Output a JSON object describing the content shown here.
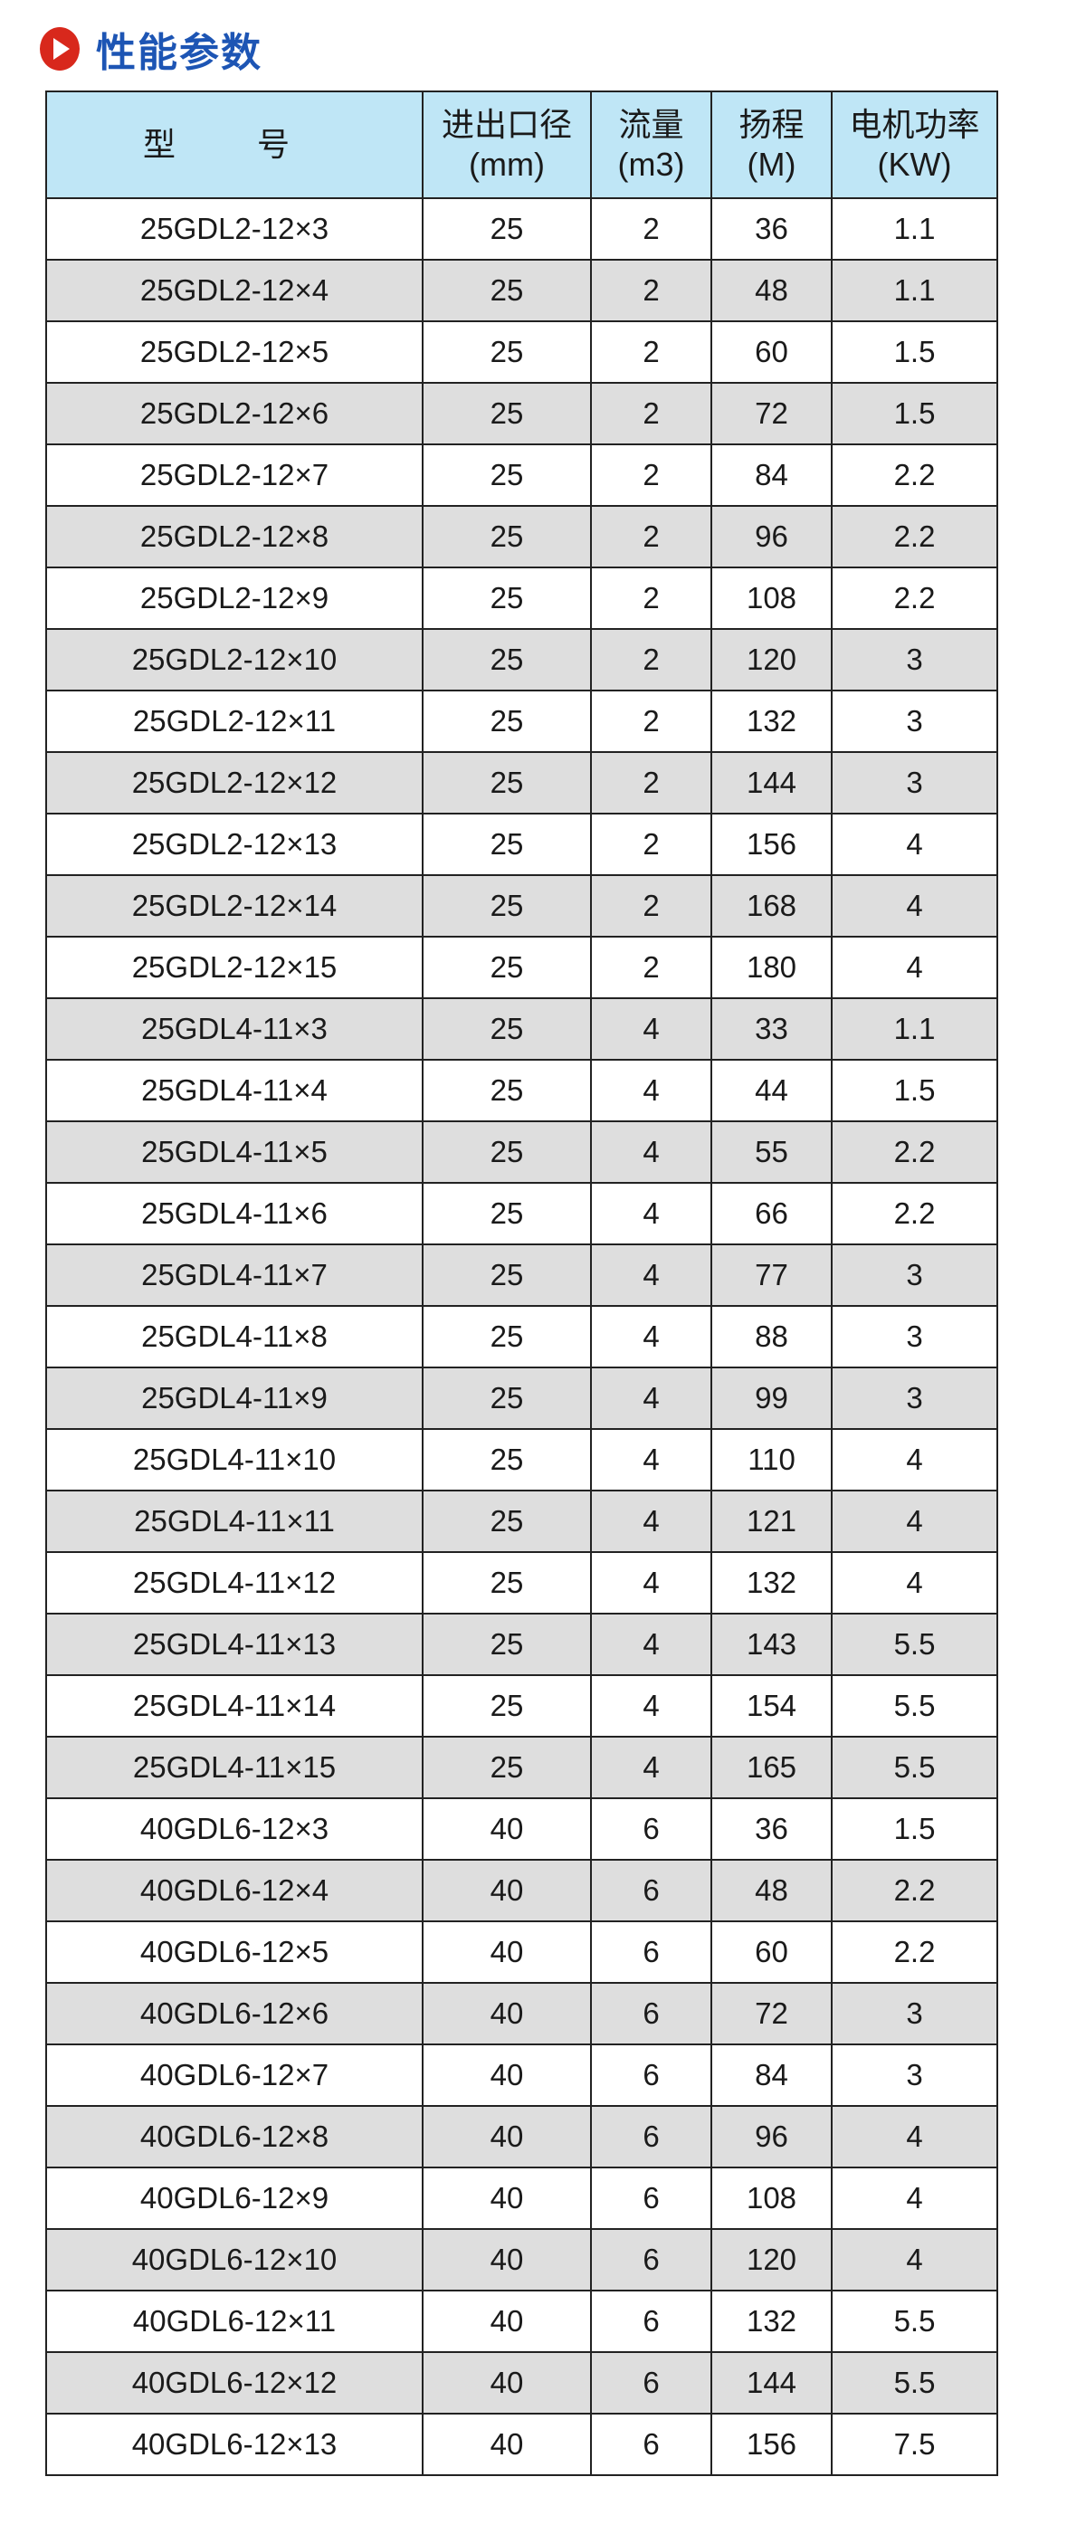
{
  "title": "性能参数",
  "colors": {
    "title": "#1d55b4",
    "icon": "#d8281c",
    "header_bg": "#bfe6f6",
    "alt_row_bg": "#dedede"
  },
  "header": {
    "model": "型 号",
    "diameter": [
      "进出口径",
      "(mm)"
    ],
    "flow": [
      "流量",
      "(m3)"
    ],
    "head": [
      "扬程",
      "(M)"
    ],
    "power": [
      "电机功率",
      "(KW)"
    ]
  },
  "rows": [
    [
      "25GDL2-12×3",
      "25",
      "2",
      "36",
      "1.1"
    ],
    [
      "25GDL2-12×4",
      "25",
      "2",
      "48",
      "1.1"
    ],
    [
      "25GDL2-12×5",
      "25",
      "2",
      "60",
      "1.5"
    ],
    [
      "25GDL2-12×6",
      "25",
      "2",
      "72",
      "1.5"
    ],
    [
      "25GDL2-12×7",
      "25",
      "2",
      "84",
      "2.2"
    ],
    [
      "25GDL2-12×8",
      "25",
      "2",
      "96",
      "2.2"
    ],
    [
      "25GDL2-12×9",
      "25",
      "2",
      "108",
      "2.2"
    ],
    [
      "25GDL2-12×10",
      "25",
      "2",
      "120",
      "3"
    ],
    [
      "25GDL2-12×11",
      "25",
      "2",
      "132",
      "3"
    ],
    [
      "25GDL2-12×12",
      "25",
      "2",
      "144",
      "3"
    ],
    [
      "25GDL2-12×13",
      "25",
      "2",
      "156",
      "4"
    ],
    [
      "25GDL2-12×14",
      "25",
      "2",
      "168",
      "4"
    ],
    [
      "25GDL2-12×15",
      "25",
      "2",
      "180",
      "4"
    ],
    [
      "25GDL4-11×3",
      "25",
      "4",
      "33",
      "1.1"
    ],
    [
      "25GDL4-11×4",
      "25",
      "4",
      "44",
      "1.5"
    ],
    [
      "25GDL4-11×5",
      "25",
      "4",
      "55",
      "2.2"
    ],
    [
      "25GDL4-11×6",
      "25",
      "4",
      "66",
      "2.2"
    ],
    [
      "25GDL4-11×7",
      "25",
      "4",
      "77",
      "3"
    ],
    [
      "25GDL4-11×8",
      "25",
      "4",
      "88",
      "3"
    ],
    [
      "25GDL4-11×9",
      "25",
      "4",
      "99",
      "3"
    ],
    [
      "25GDL4-11×10",
      "25",
      "4",
      "110",
      "4"
    ],
    [
      "25GDL4-11×11",
      "25",
      "4",
      "121",
      "4"
    ],
    [
      "25GDL4-11×12",
      "25",
      "4",
      "132",
      "4"
    ],
    [
      "25GDL4-11×13",
      "25",
      "4",
      "143",
      "5.5"
    ],
    [
      "25GDL4-11×14",
      "25",
      "4",
      "154",
      "5.5"
    ],
    [
      "25GDL4-11×15",
      "25",
      "4",
      "165",
      "5.5"
    ],
    [
      "40GDL6-12×3",
      "40",
      "6",
      "36",
      "1.5"
    ],
    [
      "40GDL6-12×4",
      "40",
      "6",
      "48",
      "2.2"
    ],
    [
      "40GDL6-12×5",
      "40",
      "6",
      "60",
      "2.2"
    ],
    [
      "40GDL6-12×6",
      "40",
      "6",
      "72",
      "3"
    ],
    [
      "40GDL6-12×7",
      "40",
      "6",
      "84",
      "3"
    ],
    [
      "40GDL6-12×8",
      "40",
      "6",
      "96",
      "4"
    ],
    [
      "40GDL6-12×9",
      "40",
      "6",
      "108",
      "4"
    ],
    [
      "40GDL6-12×10",
      "40",
      "6",
      "120",
      "4"
    ],
    [
      "40GDL6-12×11",
      "40",
      "6",
      "132",
      "5.5"
    ],
    [
      "40GDL6-12×12",
      "40",
      "6",
      "144",
      "5.5"
    ],
    [
      "40GDL6-12×13",
      "40",
      "6",
      "156",
      "7.5"
    ]
  ]
}
